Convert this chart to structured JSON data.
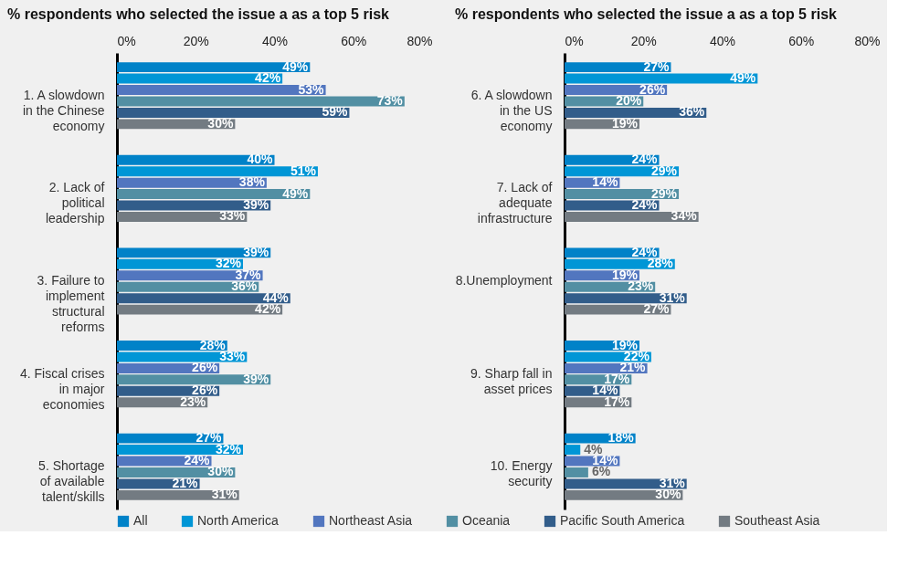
{
  "chart_data": [
    {
      "type": "bar",
      "orientation": "horizontal",
      "title": "%  respondents who selected the issue a as a top 5 risk",
      "categories": [
        "1. A slowdown\nin the Chinese\neconomy",
        "2. Lack of\npolitical\nleadership",
        "3. Failure to\nimplement\nstructural\nreforms",
        "4. Fiscal crises\nin major\neconomies",
        "5.  Shortage\nof available\ntalent/skills"
      ],
      "xlim": [
        0,
        80
      ],
      "xticks": [
        {
          "value": 0,
          "label": "0%"
        },
        {
          "value": 20,
          "label": "20%"
        },
        {
          "value": 40,
          "label": "40%"
        },
        {
          "value": 60,
          "label": "60%"
        },
        {
          "value": 80,
          "label": "80%"
        }
      ],
      "grid": false,
      "legend": "bottom",
      "series": [
        {
          "name": "All",
          "color": "#0082c8",
          "values": [
            49,
            40,
            39,
            28,
            27
          ],
          "value_labels": [
            "49%",
            "40%",
            "39%",
            "28%",
            "27%"
          ]
        },
        {
          "name": "North America",
          "color": "#0096d6",
          "values": [
            42,
            51,
            32,
            33,
            32
          ],
          "value_labels": [
            "42%",
            "51%",
            "32%",
            "33%",
            "32%"
          ]
        },
        {
          "name": "Northeast Asia",
          "color": "#5276bf",
          "values": [
            53,
            38,
            37,
            26,
            24
          ],
          "value_labels": [
            "53%",
            "38%",
            "37%",
            "26%",
            "24%"
          ]
        },
        {
          "name": "Oceania",
          "color": "#528fa3",
          "values": [
            73,
            49,
            36,
            39,
            30
          ],
          "value_labels": [
            "73%",
            "49%",
            "36%",
            "39%",
            "30%"
          ]
        },
        {
          "name": "Pacific South America",
          "color": "#325d8a",
          "values": [
            59,
            39,
            44,
            26,
            21
          ],
          "value_labels": [
            "59%",
            "39%",
            "44%",
            "26%",
            "21%"
          ]
        },
        {
          "name": "Southeast Asia",
          "color": "#737b82",
          "values": [
            30,
            33,
            42,
            23,
            31
          ],
          "value_labels": [
            "30%",
            "33%",
            "42%",
            "23%",
            "31%"
          ]
        }
      ]
    },
    {
      "type": "bar",
      "orientation": "horizontal",
      "title": "%  respondents who selected the issue a as a top 5 risk",
      "categories": [
        "6. A slowdown\nin the US\neconomy",
        "7. Lack of\nadequate\ninfrastructure",
        "8.Unemployment",
        "9. Sharp fall in\nasset prices",
        "10. Energy\nsecurity"
      ],
      "xlim": [
        0,
        80
      ],
      "xticks": [
        {
          "value": 0,
          "label": "0%"
        },
        {
          "value": 20,
          "label": "20%"
        },
        {
          "value": 40,
          "label": "40%"
        },
        {
          "value": 60,
          "label": "60%"
        },
        {
          "value": 80,
          "label": "80%"
        }
      ],
      "grid": false,
      "series": [
        {
          "name": "All",
          "color": "#0082c8",
          "values": [
            27,
            24,
            24,
            19,
            18
          ],
          "value_labels": [
            "27%",
            "24%",
            "24%",
            "19%",
            "18%"
          ]
        },
        {
          "name": "North America",
          "color": "#0096d6",
          "values": [
            49,
            29,
            28,
            22,
            4
          ],
          "value_labels": [
            "49%",
            "29%",
            "28%",
            "22%",
            "4%"
          ]
        },
        {
          "name": "Northeast Asia",
          "color": "#5276bf",
          "values": [
            26,
            14,
            19,
            21,
            14
          ],
          "value_labels": [
            "26%",
            "14%",
            "19%",
            "21%",
            "14%"
          ]
        },
        {
          "name": "Oceania",
          "color": "#528fa3",
          "values": [
            20,
            29,
            23,
            17,
            6
          ],
          "value_labels": [
            "20%",
            "29%",
            "23%",
            "17%",
            "6%"
          ]
        },
        {
          "name": "Pacific South America",
          "color": "#325d8a",
          "values": [
            36,
            24,
            31,
            14,
            31
          ],
          "value_labels": [
            "36%",
            "24%",
            "31%",
            "14%",
            "31%"
          ]
        },
        {
          "name": "Southeast Asia",
          "color": "#737b82",
          "values": [
            19,
            34,
            27,
            17,
            30
          ],
          "value_labels": [
            "19%",
            "34%",
            "27%",
            "17%",
            "30%"
          ]
        }
      ]
    }
  ]
}
